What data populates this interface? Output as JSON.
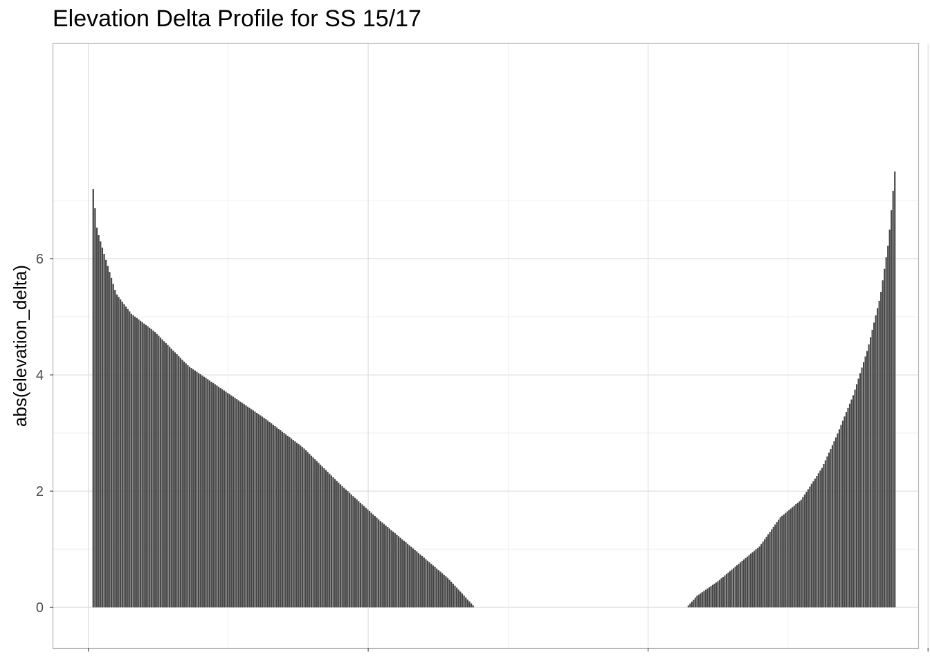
{
  "chart_data": {
    "type": "bar",
    "title": "Elevation Delta Profile for SS 15/17",
    "xlabel": "",
    "ylabel": "abs(elevation_delta)",
    "ylim": [
      -0.7,
      9.7
    ],
    "y_ticks": [
      0,
      2,
      4,
      6
    ],
    "y_tick_labels": [
      "0",
      "2",
      "4",
      "6"
    ],
    "grid": true,
    "legend": "none",
    "bar_color": "#474747",
    "panel_border_color": "#b3b3b3",
    "grid_major_color": "#dcdcdc",
    "grid_minor_color": "#ececec",
    "xlim": [
      0,
      6.18
    ],
    "x_gridlines_major": [
      0.25,
      2.25,
      4.25,
      6.25
    ],
    "x_gridlines_minor": [
      1.25,
      3.25,
      5.25
    ],
    "segments": [
      {
        "name": "",
        "x_start": 0.28,
        "x_end": 3.02,
        "bar_count": 211,
        "profile_x": [
          0,
          0.01,
          0.03,
          0.06,
          0.1,
          0.16,
          0.25,
          0.35,
          0.45,
          0.55,
          0.65,
          0.75,
          0.85,
          0.93,
          1.0
        ],
        "profile_y": [
          7.2,
          6.5,
          6.05,
          5.4,
          5.05,
          4.75,
          4.15,
          3.7,
          3.25,
          2.75,
          2.1,
          1.5,
          0.95,
          0.5,
          0.0
        ]
      },
      {
        "name": "",
        "x_start": 4.52,
        "x_end": 6.02,
        "bar_count": 121,
        "profile_x": [
          0,
          0.05,
          0.15,
          0.25,
          0.35,
          0.45,
          0.55,
          0.65,
          0.72,
          0.8,
          0.87,
          0.93,
          0.97,
          1.0
        ],
        "profile_y": [
          0.0,
          0.2,
          0.45,
          0.75,
          1.05,
          1.55,
          1.85,
          2.4,
          2.95,
          3.65,
          4.45,
          5.35,
          6.3,
          7.5
        ]
      }
    ]
  }
}
